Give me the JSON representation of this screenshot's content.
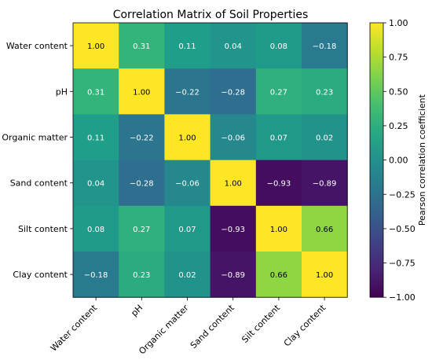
{
  "chart_data": {
    "type": "heatmap",
    "title": "Correlation Matrix of Soil Properties",
    "variables": [
      "Water content",
      "pH",
      "Organic matter",
      "Sand content",
      "Silt content",
      "Clay content"
    ],
    "matrix": [
      [
        1.0,
        0.31,
        0.11,
        0.04,
        0.08,
        -0.18
      ],
      [
        0.31,
        1.0,
        -0.22,
        -0.28,
        0.27,
        0.23
      ],
      [
        0.11,
        -0.22,
        1.0,
        -0.06,
        0.07,
        0.02
      ],
      [
        0.04,
        -0.28,
        -0.06,
        1.0,
        -0.93,
        -0.89
      ],
      [
        0.08,
        0.27,
        0.07,
        -0.93,
        1.0,
        0.66
      ],
      [
        -0.18,
        0.23,
        0.02,
        -0.89,
        0.66,
        1.0
      ]
    ],
    "colorbar": {
      "label": "Pearson correlation coefficient",
      "range": [
        -1.0,
        1.0
      ],
      "ticks": [
        "1.00",
        "0.75",
        "0.50",
        "0.25",
        "0.00",
        "−0.25",
        "−0.50",
        "−0.75",
        "−1.00"
      ],
      "colormap": "viridis"
    },
    "annotation_colors": {
      "light": "#ffffff",
      "dark": "#000000"
    }
  }
}
